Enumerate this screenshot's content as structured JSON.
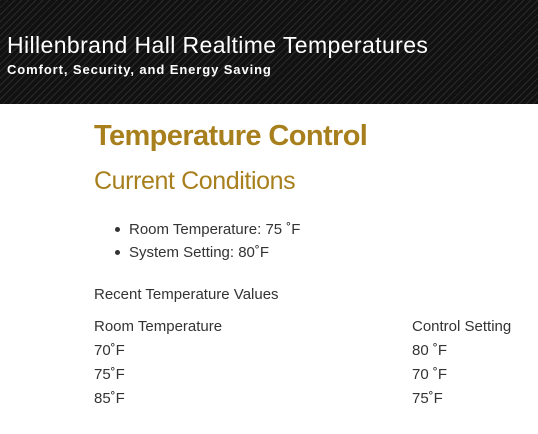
{
  "header": {
    "title": "Hillenbrand Hall Realtime Temperatures",
    "tagline": "Comfort, Security, and Energy Saving"
  },
  "main": {
    "page_title": "Temperature Control",
    "section_title": "Current Conditions",
    "conditions": [
      "Room Temperature: 75 ˚F",
      "System Setting: 80˚F"
    ],
    "recent_heading": "Recent Temperature Values",
    "table": {
      "headers": [
        "Room Temperature",
        "Control Setting"
      ],
      "rows": [
        [
          "70˚F",
          "80 ˚F"
        ],
        [
          "75˚F",
          "70 ˚F"
        ],
        [
          "85˚F",
          "75˚F"
        ]
      ]
    }
  },
  "colors": {
    "accent": "#a87f1d",
    "header_bg": "#141414",
    "text": "#333333"
  }
}
